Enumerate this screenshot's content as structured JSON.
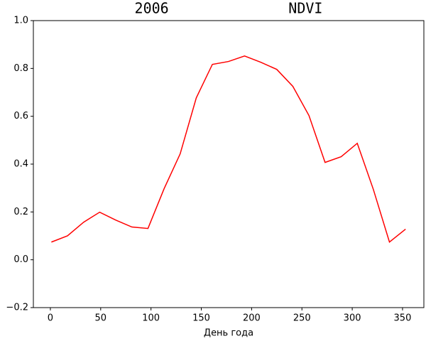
{
  "chart_data": {
    "type": "line",
    "title": "2006              NDVI",
    "xlabel": "День года",
    "x": [
      1,
      17,
      33,
      49,
      65,
      81,
      97,
      113,
      129,
      145,
      161,
      177,
      193,
      209,
      225,
      241,
      257,
      273,
      289,
      305,
      321,
      337,
      353
    ],
    "series": [
      {
        "color": "#ff0000",
        "values": [
          0.074,
          0.1,
          0.157,
          0.199,
          0.166,
          0.137,
          0.131,
          0.297,
          0.443,
          0.677,
          0.817,
          0.829,
          0.852,
          0.826,
          0.796,
          0.725,
          0.603,
          0.407,
          0.431,
          0.487,
          0.294,
          0.074,
          0.128
        ]
      }
    ],
    "xlim": [
      -16.9,
      371.2
    ],
    "xticks": [
      0,
      50,
      100,
      150,
      200,
      250,
      300,
      350
    ],
    "ylim": [
      -0.2,
      1.0
    ],
    "yticks": [
      {
        "value": -0.2,
        "label": "−0.2"
      },
      {
        "value": 0,
        "label": "0.0"
      },
      {
        "value": 0.2,
        "label": "0.2"
      },
      {
        "value": 0.4,
        "label": "0.4"
      },
      {
        "value": 0.6,
        "label": "0.6"
      },
      {
        "value": 0.8,
        "label": "0.8"
      },
      {
        "value": 1.0,
        "label": "1.0"
      }
    ]
  }
}
